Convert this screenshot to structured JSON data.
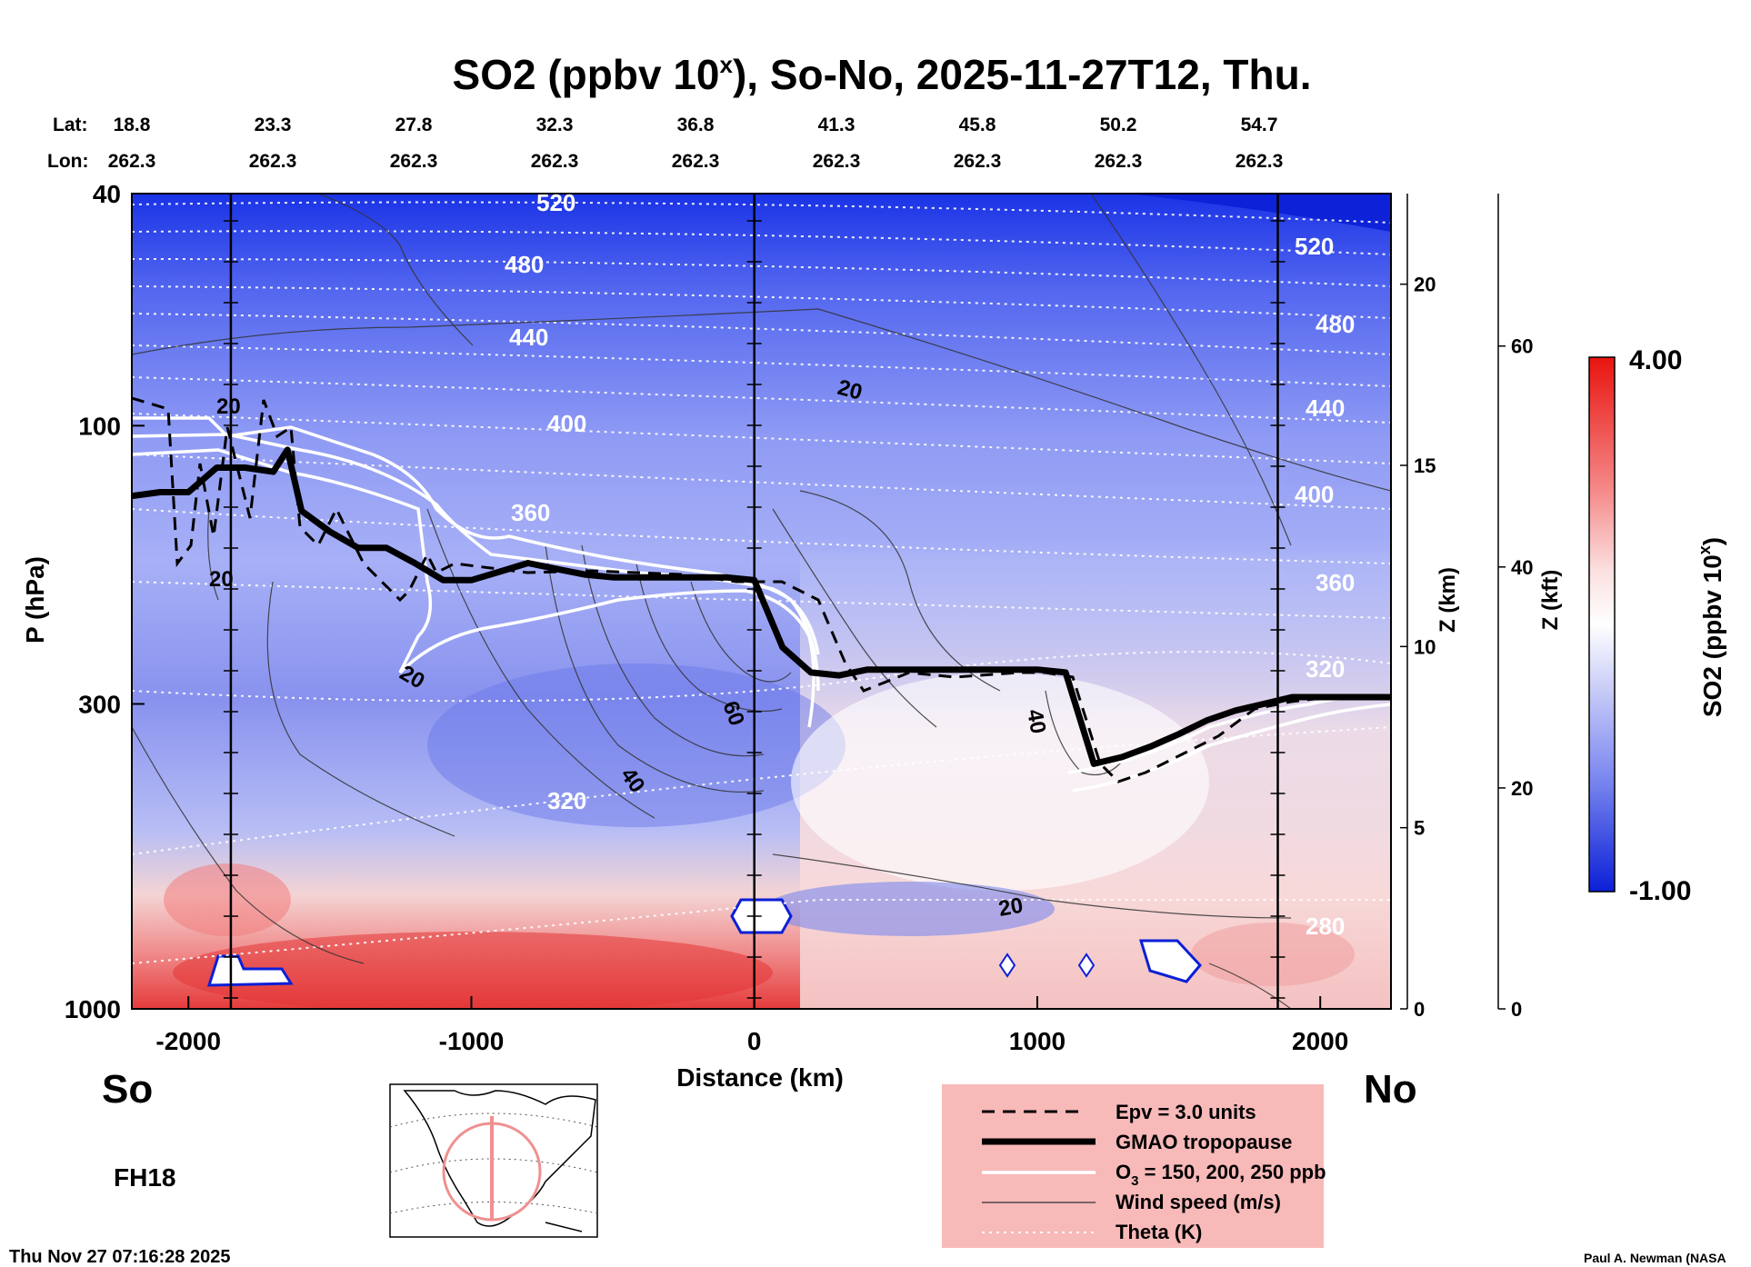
{
  "chart_data": {
    "type": "heatmap",
    "title": "SO2 (ppbv 10",
    "title_sup": "x",
    "title_rest": "), So-No, 2025-11-27T12, Thu.",
    "xlabel": "Distance (km)",
    "ylabel": "P (hPa)",
    "xlim": [
      -2200,
      2250
    ],
    "ylim": [
      1000,
      40
    ],
    "x_ticks": [
      -2000,
      -1000,
      0,
      1000,
      2000
    ],
    "x_tick_labels": [
      "-2000",
      "-1000",
      "0",
      "1000",
      "2000"
    ],
    "y_ticks": [
      40,
      100,
      300,
      1000
    ],
    "y_tick_labels": [
      "40",
      "100",
      "300",
      "1000"
    ],
    "z_km_label": "Z (km)",
    "z_km_ticks": [
      0,
      5,
      10,
      15,
      20
    ],
    "z_km_tick_labels": [
      "0",
      "5",
      "10",
      "15",
      "20"
    ],
    "z_kft_label": "Z (kft)",
    "z_kft_ticks": [
      0,
      20,
      40,
      60
    ],
    "z_kft_tick_labels": [
      "0",
      "20",
      "40",
      "60"
    ],
    "lat_header": "Lat:",
    "lon_header": "Lon:",
    "lat_values": [
      "18.8",
      "23.3",
      "27.8",
      "32.3",
      "36.8",
      "41.3",
      "45.8",
      "50.2",
      "54.7"
    ],
    "lon_values": [
      "262.3",
      "262.3",
      "262.3",
      "262.3",
      "262.3",
      "262.3",
      "262.3",
      "262.3",
      "262.3"
    ],
    "theta_labels": [
      "520",
      "480",
      "440",
      "400",
      "360",
      "320",
      "520",
      "480",
      "440",
      "400",
      "360",
      "320",
      "280"
    ],
    "wind_labels": [
      "20",
      "20",
      "20",
      "20",
      "60",
      "40",
      "40",
      "20"
    ],
    "colorbar": {
      "label": "SO2 (ppbv 10",
      "label_sup": "x",
      "label_end": ")",
      "max_label": "4.00",
      "min_label": "-1.00",
      "range": [
        -1.0,
        4.0
      ]
    },
    "legend": [
      {
        "style": "dashed",
        "label": "Epv = 3.0 units"
      },
      {
        "style": "thick",
        "label": "GMAO tropopause"
      },
      {
        "style": "white",
        "label": "O",
        "label_sub": "3",
        "label_rest": " = 150, 200, 250 ppb"
      },
      {
        "style": "thin",
        "label": "Wind speed (m/s)"
      },
      {
        "style": "dotted",
        "label": "Theta (K)"
      }
    ],
    "gmao_tropopause_hpa": {
      "x": [
        -2200,
        -2100,
        -2000,
        -1900,
        -1800,
        -1700,
        -1650,
        -1600,
        -1500,
        -1400,
        -1300,
        -1200,
        -1100,
        -1000,
        -900,
        -800,
        -700,
        -600,
        -500,
        -400,
        -300,
        -200,
        -100,
        0,
        100,
        200,
        300,
        400,
        600,
        800,
        1000,
        1100,
        1200,
        1300,
        1400,
        1500,
        1600,
        1700,
        1800,
        1900,
        2000,
        2100,
        2250
      ],
      "p": [
        132,
        130,
        130,
        118,
        118,
        120,
        110,
        140,
        152,
        162,
        162,
        172,
        184,
        184,
        178,
        172,
        176,
        180,
        182,
        182,
        182,
        182,
        182,
        184,
        240,
        265,
        268,
        262,
        262,
        262,
        262,
        265,
        380,
        370,
        355,
        338,
        320,
        308,
        300,
        292,
        292,
        292,
        292
      ]
    },
    "colors": {
      "frame": "#000000",
      "theta": "#ffffff",
      "legend_bg": "#f8b9b9",
      "cbar_top": "#e8140f",
      "cbar_bottom": "#0b1fd6"
    }
  },
  "footer": {
    "left_label": "So",
    "right_label": "No",
    "forecast_hour": "FH18",
    "timestamp": "Thu Nov 27 07:16:28 2025",
    "credit": "Paul A. Newman (NASA"
  }
}
